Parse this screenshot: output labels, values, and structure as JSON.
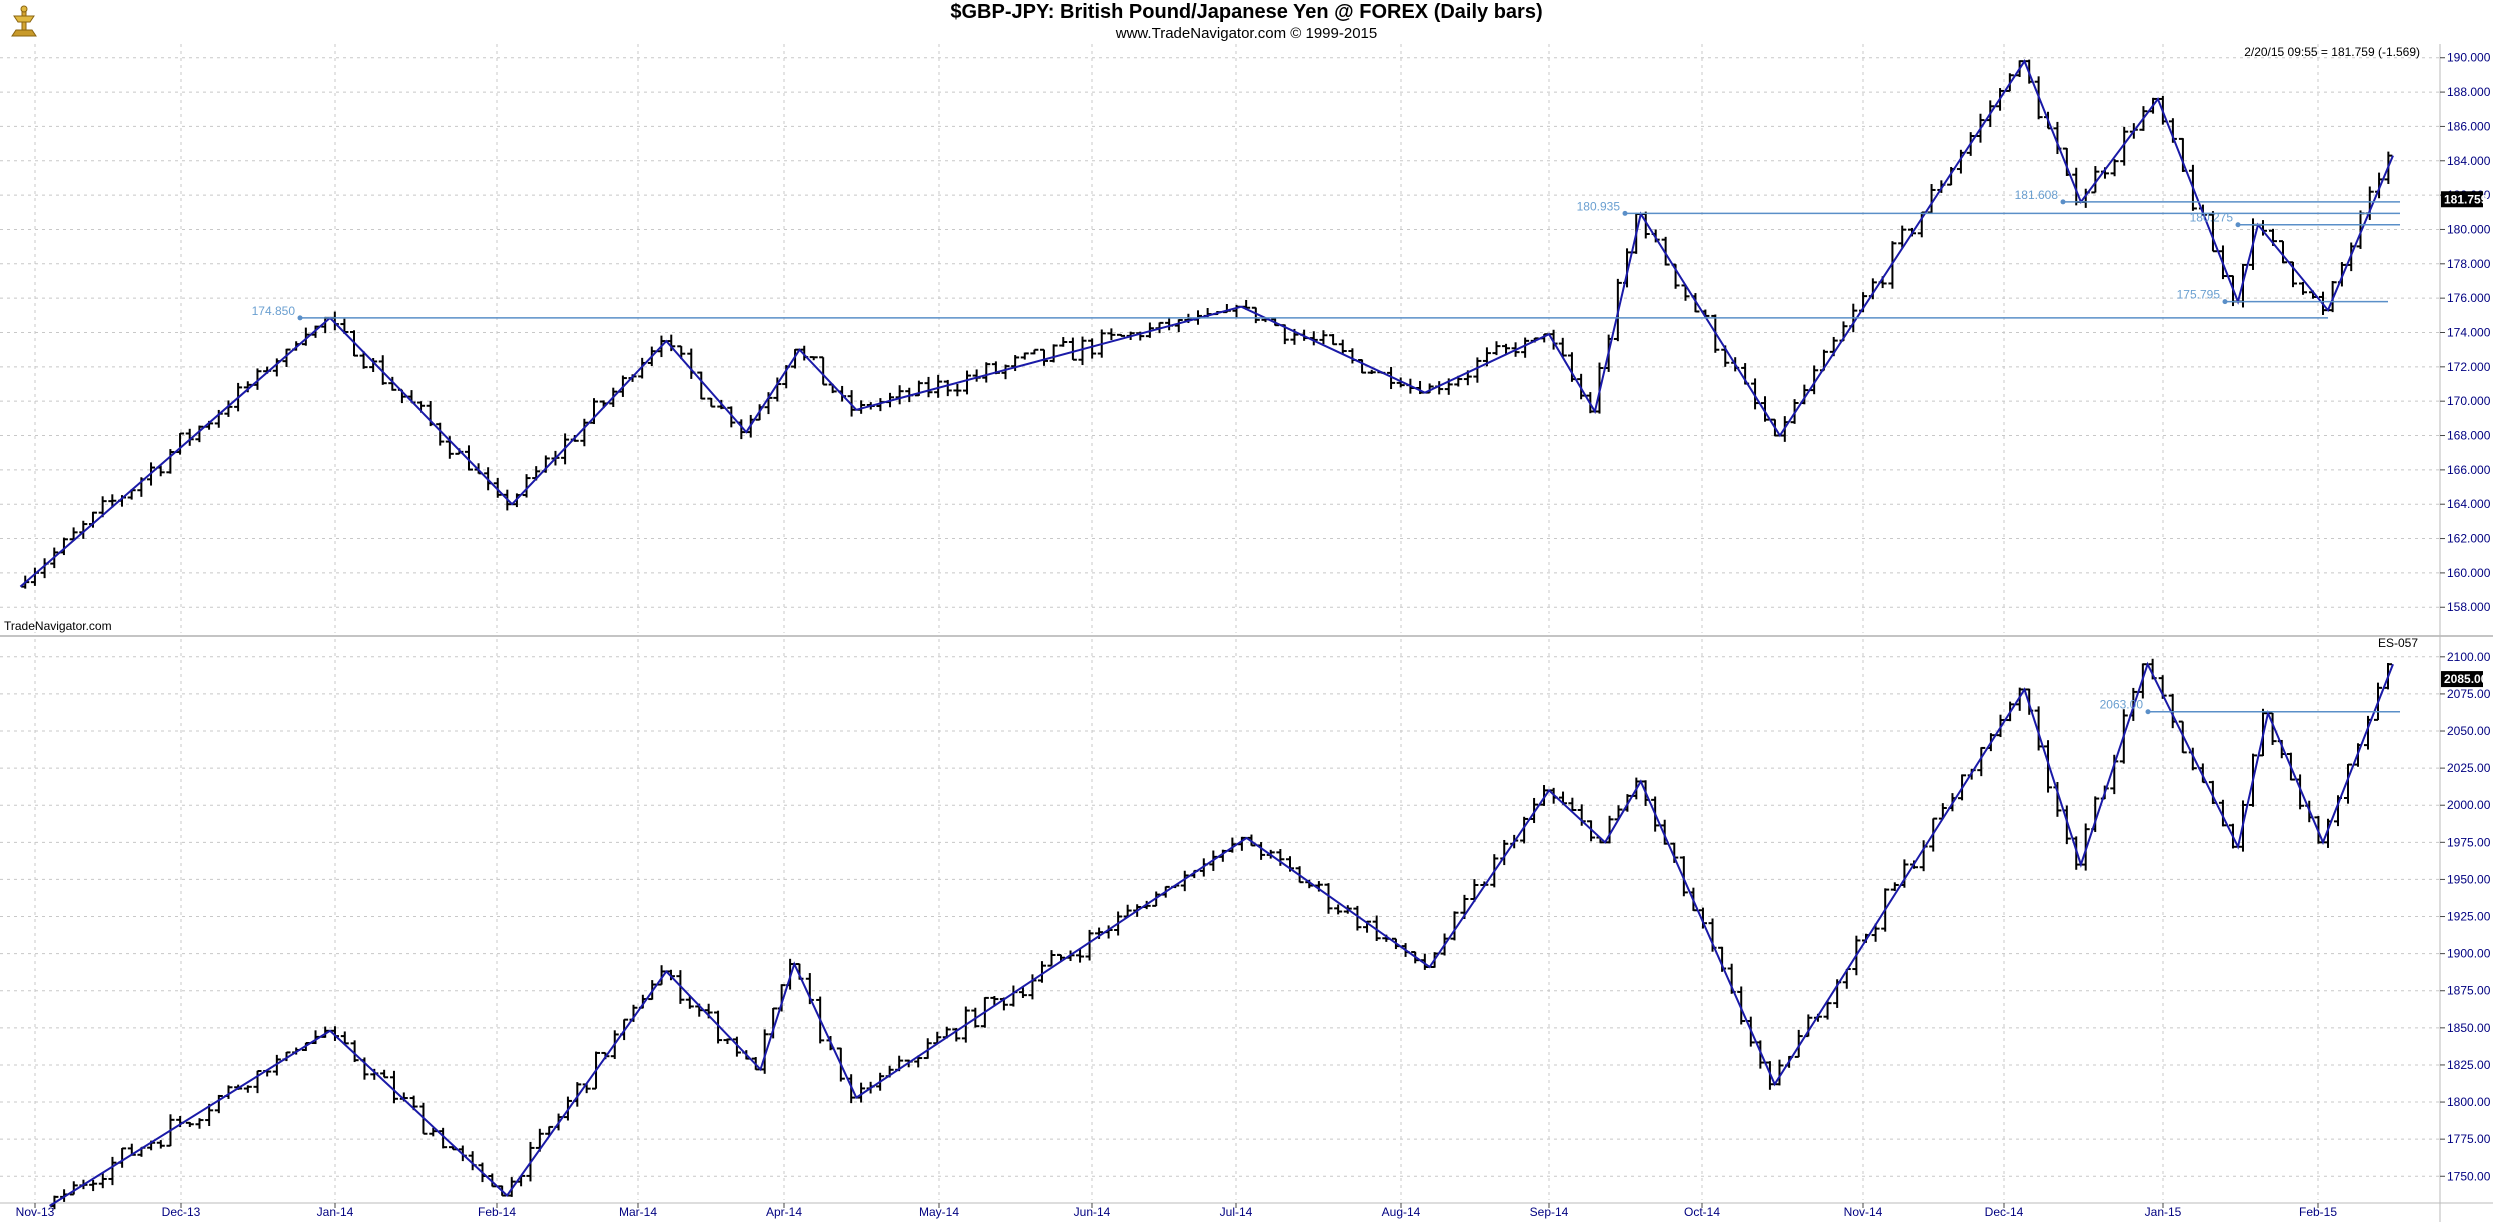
{
  "header": {
    "title": "$GBP-JPY:  British Pound/Japanese Yen @ FOREX  (Daily bars)",
    "subtitle": "www.TradeNavigator.com © 1999-2015"
  },
  "watermark": "TradeNavigator.com",
  "colors": {
    "zigzag": "#1a1aa8",
    "level_line": "#5a8fc8",
    "level_label": "#6a9fd0",
    "bars": "#000000",
    "grid": "#c8c8c8",
    "axis_text": "#000080",
    "price_box": "#000000"
  },
  "x_axis": {
    "labels": [
      "Nov-13",
      "Dec-13",
      "Jan-14",
      "Feb-14",
      "Mar-14",
      "Apr-14",
      "May-14",
      "Jun-14",
      "Jul-14",
      "Aug-14",
      "Sep-14",
      "Oct-14",
      "Nov-14",
      "Dec-14",
      "Jan-15",
      "Feb-15"
    ]
  },
  "chart_data": [
    {
      "type": "ohlc",
      "name": "$GBP-JPY",
      "readout": "2/20/15 09:55 = 181.759 (-1.569)",
      "last_price": "181.759",
      "ylim": [
        156.5,
        190.8
      ],
      "yticks": [
        "158.000",
        "160.000",
        "162.000",
        "164.000",
        "166.000",
        "168.000",
        "170.000",
        "172.000",
        "174.000",
        "176.000",
        "178.000",
        "180.000",
        "182.000",
        "184.000",
        "186.000",
        "188.000",
        "190.000"
      ],
      "dates": [
        "Nov-13",
        "Dec-13",
        "Jan-14",
        "Feb-14",
        "Mar-14",
        "Apr-14",
        "May-14",
        "Jun-14",
        "Jul-14",
        "Aug-14",
        "Sep-14",
        "Oct-14",
        "Nov-14",
        "Dec-14",
        "Jan-15",
        "Feb-15"
      ],
      "swing_points": [
        {
          "date": "2013-10-29",
          "price": 159.2
        },
        {
          "date": "2013-12-31",
          "price": 174.85
        },
        {
          "date": "2014-02-04",
          "price": 164.0
        },
        {
          "date": "2014-03-07",
          "price": 173.5
        },
        {
          "date": "2014-03-24",
          "price": 168.2
        },
        {
          "date": "2014-04-04",
          "price": 173.0
        },
        {
          "date": "2014-04-15",
          "price": 169.5
        },
        {
          "date": "2014-07-02",
          "price": 175.5
        },
        {
          "date": "2014-08-06",
          "price": 170.5
        },
        {
          "date": "2014-09-01",
          "price": 173.9
        },
        {
          "date": "2014-09-10",
          "price": 169.4
        },
        {
          "date": "2014-09-19",
          "price": 180.9
        },
        {
          "date": "2014-10-16",
          "price": 168.0
        },
        {
          "date": "2014-12-05",
          "price": 189.8
        },
        {
          "date": "2014-12-16",
          "price": 181.6
        },
        {
          "date": "2014-12-31",
          "price": 187.6
        },
        {
          "date": "2015-01-16",
          "price": 175.8
        },
        {
          "date": "2015-01-20",
          "price": 180.27
        },
        {
          "date": "2015-02-03",
          "price": 175.3
        },
        {
          "date": "2015-02-16",
          "price": 184.3
        }
      ],
      "levels": [
        {
          "label": "174.850",
          "value": 174.85
        },
        {
          "label": "180.935",
          "value": 180.935
        },
        {
          "label": "181.608",
          "value": 181.608
        },
        {
          "label": "180.275",
          "value": 180.275
        },
        {
          "label": "175.795",
          "value": 175.795
        }
      ]
    },
    {
      "type": "ohlc",
      "name": "ES-057",
      "last_price": "2085.00",
      "ylim": [
        1734,
        2112
      ],
      "yticks": [
        "1750.00",
        "1775.00",
        "1800.00",
        "1825.00",
        "1850.00",
        "1875.00",
        "1900.00",
        "1925.00",
        "1950.00",
        "1975.00",
        "2000.00",
        "2025.00",
        "2050.00",
        "2075.00",
        "2100.00"
      ],
      "dates": [
        "Nov-13",
        "Dec-13",
        "Jan-14",
        "Feb-14",
        "Mar-14",
        "Apr-14",
        "May-14",
        "Jun-14",
        "Jul-14",
        "Aug-14",
        "Sep-14",
        "Oct-14",
        "Nov-14",
        "Dec-14",
        "Jan-15",
        "Feb-15"
      ],
      "swing_points": [
        {
          "date": "2013-11-04",
          "price": 1730.0
        },
        {
          "date": "2013-12-31",
          "price": 1848.0
        },
        {
          "date": "2014-02-03",
          "price": 1737.0
        },
        {
          "date": "2014-03-07",
          "price": 1888.0
        },
        {
          "date": "2014-03-27",
          "price": 1822.0
        },
        {
          "date": "2014-04-03",
          "price": 1893.0
        },
        {
          "date": "2014-04-15",
          "price": 1803.0
        },
        {
          "date": "2014-07-03",
          "price": 1978.0
        },
        {
          "date": "2014-08-07",
          "price": 1891.0
        },
        {
          "date": "2014-09-01",
          "price": 2010.0
        },
        {
          "date": "2014-09-12",
          "price": 1975.0
        },
        {
          "date": "2014-09-19",
          "price": 2016.0
        },
        {
          "date": "2014-10-15",
          "price": 1812.0
        },
        {
          "date": "2014-12-05",
          "price": 2078.0
        },
        {
          "date": "2014-12-16",
          "price": 1960.0
        },
        {
          "date": "2014-12-29",
          "price": 2095.0
        },
        {
          "date": "2015-01-16",
          "price": 1972.0
        },
        {
          "date": "2015-01-22",
          "price": 2062.0
        },
        {
          "date": "2015-02-02",
          "price": 1975.0
        },
        {
          "date": "2015-02-16",
          "price": 2095.0
        }
      ],
      "levels": [
        {
          "label": "2063.00",
          "value": 2063.0
        }
      ]
    }
  ]
}
